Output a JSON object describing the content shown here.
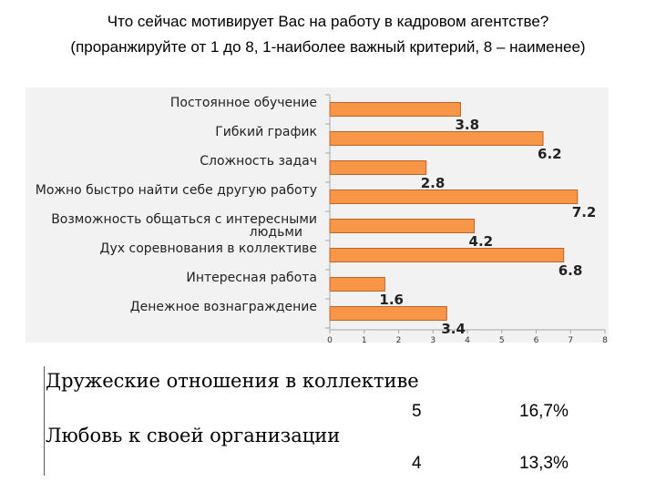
{
  "header": {
    "title_line1": "Что сейчас мотивирует Вас на работу в кадровом агентстве?",
    "title_line2": "(проранжируйте от 1 до 8, 1-наиболее важный критерий, 8 – наименее)"
  },
  "chart_data": {
    "type": "bar",
    "orientation": "horizontal",
    "categories": [
      "Постоянное обучение",
      "Гибкий график",
      "Сложность задач",
      "Можно быстро найти себе другую работу",
      "Возможность общаться с интересными людьми",
      "Дух соревнования в коллективе",
      "Интересная работа",
      "Денежное вознаграждение"
    ],
    "values": [
      3.8,
      6.2,
      2.8,
      7.2,
      4.2,
      6.8,
      1.6,
      3.4
    ],
    "value_labels": [
      "3.8",
      "6.2",
      "2.8",
      "7.2",
      "4.2",
      "6.8",
      "1.6",
      "3.4"
    ],
    "xlim": [
      0,
      8
    ],
    "xticks": [
      "0",
      "1",
      "2",
      "3",
      "4",
      "5",
      "6",
      "7",
      "8"
    ],
    "bar_color": "#f79646",
    "bar_edge_color": "#c0652a",
    "background": "#f2f2f2"
  },
  "extra": {
    "item1": {
      "label": "Дружеские отношения в коллективе",
      "count": "5",
      "percent": "16,7%"
    },
    "item2": {
      "label": "Любовь к своей организации",
      "count": "4",
      "percent": "13,3%"
    }
  }
}
